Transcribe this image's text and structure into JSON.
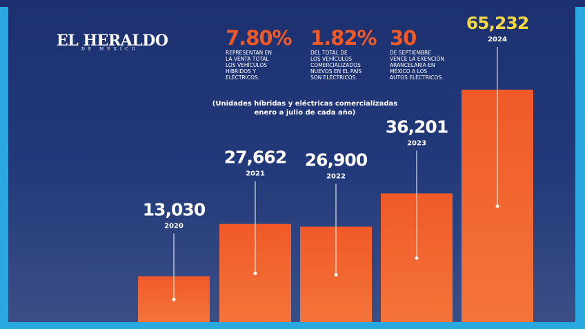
{
  "header": {
    "logo": "EL HERALDO",
    "logo_sub": "DE MÉXICO"
  },
  "stats": [
    {
      "value": "7.80%",
      "lines": [
        "REPRESENTAN EN",
        "LA VENTA TOTAL",
        "LOS VEHÍCULOS",
        "HÍBRIDOS Y",
        "ELÉCTRICOS."
      ]
    },
    {
      "value": "1.82%",
      "lines": [
        "DEL TOTAL DE",
        "LOS VEHÍCULOS",
        "COMERCIALIZADOS",
        "NUEVOS EN EL PAÍS",
        "SON ELÉCTRICOS."
      ]
    },
    {
      "value": "30",
      "lines": [
        "DE SEPTIEMBRE",
        "VENCE LA EXENCIÓN",
        "ARANCELARIA EN",
        "MÉXICO A LOS",
        "AUTOS ELÉCTRICOS."
      ]
    }
  ],
  "chart_data": {
    "type": "bar",
    "subtitle": [
      "(Unidades híbridas y eléctricas comercializadas",
      "enero a julio de cada año)"
    ],
    "categories": [
      "2020",
      "2021",
      "2022",
      "2023",
      "2024"
    ],
    "values": [
      13030,
      27662,
      26900,
      36201,
      65232
    ],
    "value_labels": [
      "13,030",
      "27,662",
      "26,900",
      "36,201",
      "65,232"
    ],
    "color": "#f05a28"
  }
}
